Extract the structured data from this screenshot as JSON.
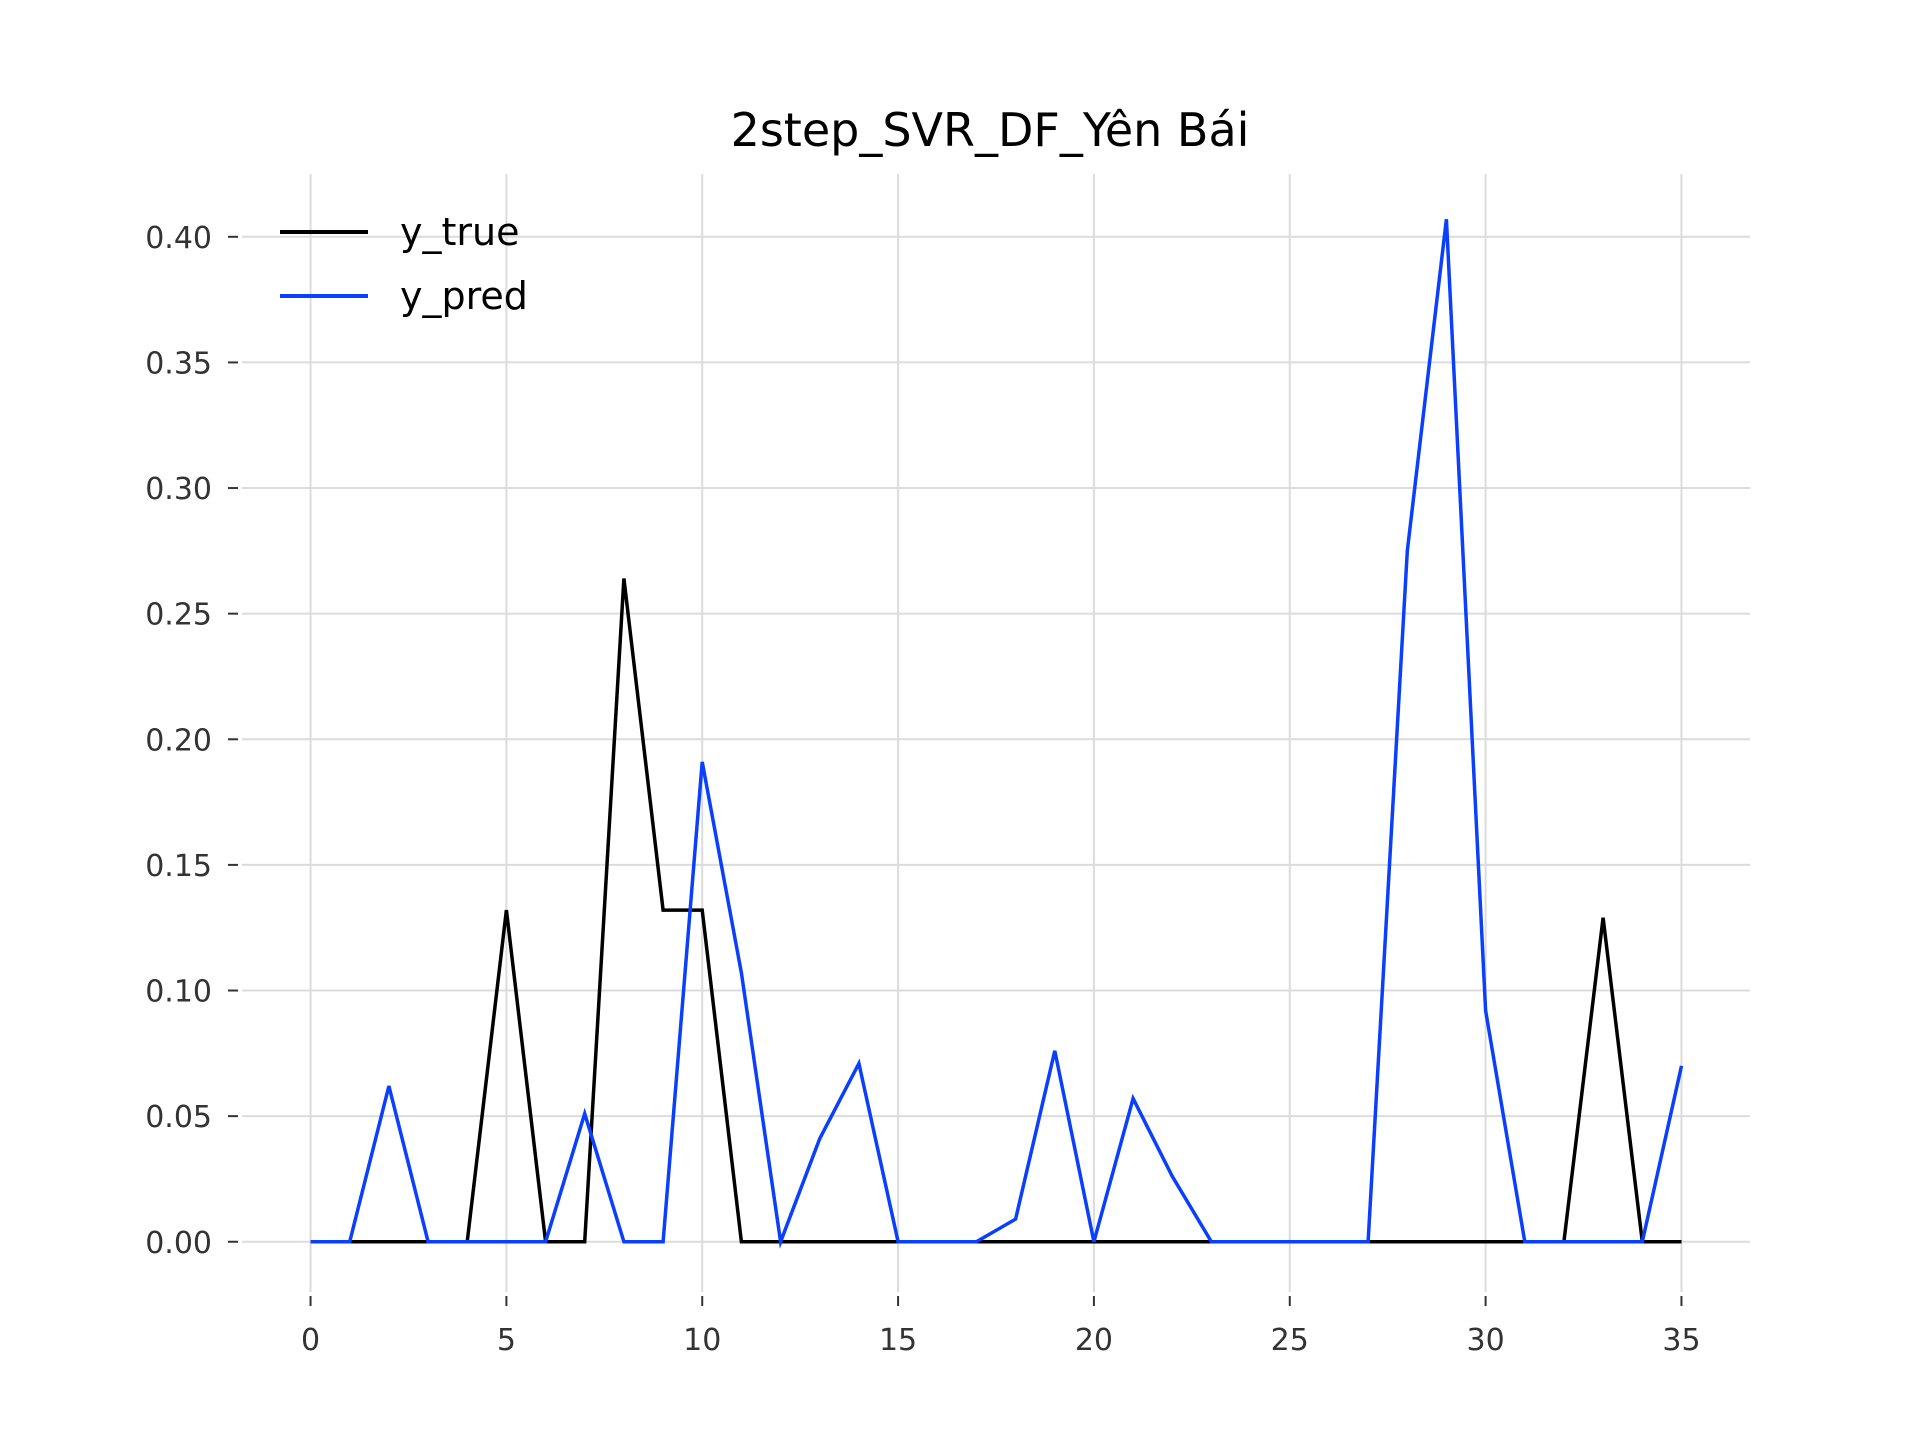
{
  "chart_data": {
    "type": "line",
    "title": "2step_SVR_DF_Yên Bái",
    "xlabel": "",
    "ylabel": "",
    "xlim": [
      -1.75,
      36.75
    ],
    "ylim": [
      -0.02,
      0.425
    ],
    "x_ticks": [
      0,
      5,
      10,
      15,
      20,
      25,
      30,
      35
    ],
    "x_tick_labels": [
      "0",
      "5",
      "10",
      "15",
      "20",
      "25",
      "30",
      "35"
    ],
    "y_ticks": [
      0.0,
      0.05,
      0.1,
      0.15,
      0.2,
      0.25,
      0.3,
      0.35,
      0.4
    ],
    "y_tick_labels": [
      "0.00",
      "0.05",
      "0.10",
      "0.15",
      "0.20",
      "0.25",
      "0.30",
      "0.35",
      "0.40"
    ],
    "grid": true,
    "legend": "top-left",
    "x": [
      0,
      1,
      2,
      3,
      4,
      5,
      6,
      7,
      8,
      9,
      10,
      11,
      12,
      13,
      14,
      15,
      16,
      17,
      18,
      19,
      20,
      21,
      22,
      23,
      24,
      25,
      26,
      27,
      28,
      29,
      30,
      31,
      32,
      33,
      34,
      35
    ],
    "series": [
      {
        "name": "y_true",
        "color": "#000000",
        "values": [
          0,
          0,
          0,
          0,
          0,
          0.132,
          0,
          0,
          0.264,
          0.132,
          0.132,
          0,
          0,
          0,
          0,
          0,
          0,
          0,
          0,
          0,
          0,
          0,
          0,
          0,
          0,
          0,
          0,
          0,
          0,
          0,
          0,
          0,
          0,
          0.129,
          0,
          0
        ]
      },
      {
        "name": "y_pred",
        "color": "#0a3fff",
        "values": [
          0,
          0,
          0.062,
          0,
          0,
          0,
          0,
          0.051,
          0,
          0,
          0.191,
          0.107,
          0,
          0.041,
          0.071,
          0,
          0,
          0,
          0.009,
          0.076,
          0,
          0.057,
          0.026,
          0,
          0,
          0,
          0,
          0,
          0.275,
          0.407,
          0.092,
          0,
          0,
          0,
          0,
          0.07
        ]
      }
    ]
  }
}
